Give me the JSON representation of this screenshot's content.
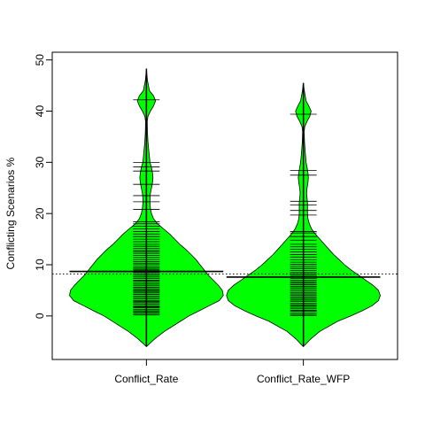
{
  "chart_data": {
    "type": "beanplot",
    "ylabel": "Conflicting Scenarios %",
    "xlabel": "",
    "ylim": [
      -8.5,
      51.5
    ],
    "yticks": [
      0,
      10,
      20,
      30,
      40,
      50
    ],
    "overall_mean": 8.2,
    "fill_color": "#00ff00",
    "categories": [
      "Conflict_Rate",
      "Conflict_Rate_WFP"
    ],
    "series": [
      {
        "mean": 8.7,
        "range": [
          -6,
          48.3
        ],
        "density": [
          [
            -6,
            0
          ],
          [
            -4.5,
            0.08
          ],
          [
            -3,
            0.18
          ],
          [
            -1,
            0.34
          ],
          [
            0,
            0.42
          ],
          [
            1,
            0.52
          ],
          [
            2,
            0.62
          ],
          [
            3,
            0.72
          ],
          [
            4,
            0.76
          ],
          [
            5,
            0.75
          ],
          [
            6,
            0.71
          ],
          [
            7,
            0.66
          ],
          [
            8,
            0.61
          ],
          [
            9,
            0.57
          ],
          [
            10,
            0.53
          ],
          [
            11,
            0.49
          ],
          [
            12,
            0.44
          ],
          [
            13,
            0.39
          ],
          [
            14,
            0.33
          ],
          [
            15,
            0.28
          ],
          [
            16,
            0.23
          ],
          [
            17,
            0.17
          ],
          [
            18,
            0.11
          ],
          [
            19,
            0.07
          ],
          [
            20,
            0.05
          ],
          [
            21,
            0.04
          ],
          [
            22,
            0.035
          ],
          [
            23,
            0.035
          ],
          [
            24,
            0.04
          ],
          [
            25,
            0.05
          ],
          [
            26,
            0.06
          ],
          [
            27,
            0.065
          ],
          [
            28,
            0.06
          ],
          [
            29,
            0.05
          ],
          [
            30,
            0.035
          ],
          [
            32,
            0.025
          ],
          [
            34,
            0.015
          ],
          [
            36,
            0.01
          ],
          [
            38,
            0.008
          ],
          [
            39,
            0.015
          ],
          [
            40,
            0.04
          ],
          [
            41,
            0.07
          ],
          [
            42,
            0.09
          ],
          [
            43,
            0.07
          ],
          [
            44,
            0.03
          ],
          [
            46,
            0.01
          ],
          [
            48.3,
            0
          ]
        ],
        "observations": [
          0.2,
          0.5,
          0.8,
          1.0,
          1.3,
          1.6,
          1.8,
          2.0,
          2.3,
          2.6,
          2.8,
          3.0,
          3.3,
          3.6,
          3.9,
          4.2,
          4.5,
          4.8,
          5.0,
          5.3,
          5.6,
          5.9,
          6.2,
          6.5,
          6.8,
          7.0,
          7.3,
          7.6,
          7.9,
          8.2,
          8.5,
          8.8,
          9.0,
          9.3,
          9.6,
          10.0,
          10.3,
          10.6,
          11.0,
          11.4,
          11.8,
          12.2,
          12.5,
          12.8,
          13.2,
          13.6,
          14.0,
          14.5,
          15.0,
          15.5,
          16.0,
          16.5,
          17.0,
          17.5,
          18.0,
          18.4,
          20.8,
          22.3,
          23.5,
          25.7,
          28.3,
          29.1,
          30.0,
          42.2
        ]
      },
      {
        "mean": 7.6,
        "range": [
          -6,
          45.5
        ],
        "density": [
          [
            -6,
            0
          ],
          [
            -4.5,
            0.08
          ],
          [
            -3,
            0.18
          ],
          [
            -1,
            0.38
          ],
          [
            0,
            0.52
          ],
          [
            1,
            0.64
          ],
          [
            2,
            0.75
          ],
          [
            3,
            0.82
          ],
          [
            4,
            0.84
          ],
          [
            5,
            0.82
          ],
          [
            6,
            0.76
          ],
          [
            7,
            0.68
          ],
          [
            8,
            0.6
          ],
          [
            9,
            0.52
          ],
          [
            10,
            0.45
          ],
          [
            11,
            0.39
          ],
          [
            12,
            0.33
          ],
          [
            13,
            0.28
          ],
          [
            14,
            0.23
          ],
          [
            15,
            0.18
          ],
          [
            16,
            0.13
          ],
          [
            17,
            0.09
          ],
          [
            18,
            0.065
          ],
          [
            19,
            0.05
          ],
          [
            20,
            0.045
          ],
          [
            21,
            0.045
          ],
          [
            22,
            0.045
          ],
          [
            23,
            0.04
          ],
          [
            24,
            0.035
          ],
          [
            25,
            0.04
          ],
          [
            26,
            0.05
          ],
          [
            27,
            0.055
          ],
          [
            28,
            0.05
          ],
          [
            29,
            0.04
          ],
          [
            30,
            0.03
          ],
          [
            32,
            0.02
          ],
          [
            34,
            0.012
          ],
          [
            36,
            0.008
          ],
          [
            37,
            0.015
          ],
          [
            38,
            0.04
          ],
          [
            39,
            0.07
          ],
          [
            40,
            0.085
          ],
          [
            41,
            0.06
          ],
          [
            42,
            0.03
          ],
          [
            44,
            0.01
          ],
          [
            45.5,
            0
          ]
        ],
        "observations": [
          0.1,
          0.3,
          0.6,
          0.9,
          1.1,
          1.4,
          1.7,
          2.0,
          2.2,
          2.5,
          2.8,
          3.1,
          3.4,
          3.7,
          4.0,
          4.3,
          4.6,
          4.9,
          5.2,
          5.5,
          5.8,
          6.1,
          6.4,
          6.7,
          7.0,
          7.3,
          7.6,
          7.9,
          8.2,
          8.5,
          8.9,
          9.3,
          9.7,
          10.1,
          10.5,
          11.0,
          11.5,
          12.0,
          12.5,
          13.0,
          13.5,
          14.0,
          14.8,
          15.5,
          16.2,
          16.5,
          19.7,
          20.6,
          21.7,
          22.4,
          27.5,
          28.4,
          39.4
        ]
      }
    ]
  }
}
